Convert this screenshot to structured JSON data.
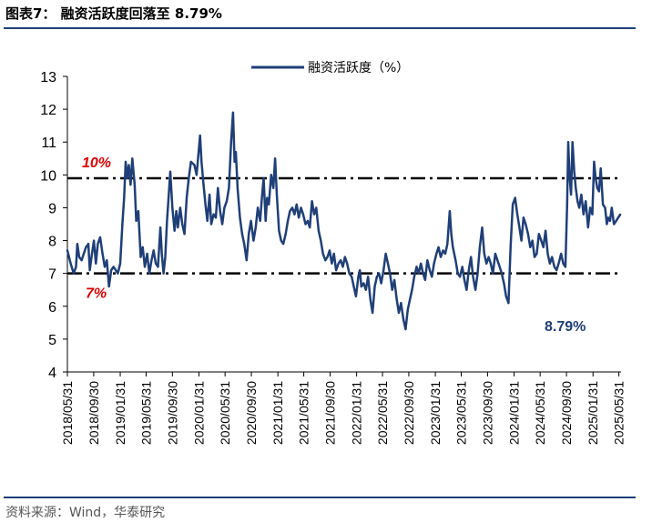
{
  "header": {
    "title": "图表7： 融资活跃度回落至 8.79%",
    "source": "资料来源：Wind，华泰研究"
  },
  "colors": {
    "line": "#1f3f78",
    "accent": "#e00000",
    "rule": "#1f3f78"
  },
  "chart_data": {
    "type": "line",
    "title": "",
    "xlabel": "",
    "ylabel": "",
    "ylim": [
      4,
      13
    ],
    "yticks": [
      4,
      5,
      6,
      7,
      8,
      9,
      10,
      11,
      12,
      13
    ],
    "xlim": [
      "2018-05-31",
      "2025-06-10"
    ],
    "xticks": [
      "2018/05/31",
      "2018/09/30",
      "2019/01/31",
      "2019/05/31",
      "2019/09/30",
      "2020/01/31",
      "2020/05/31",
      "2020/09/30",
      "2021/01/31",
      "2021/05/31",
      "2021/09/30",
      "2022/01/31",
      "2022/05/31",
      "2022/09/30",
      "2023/01/31",
      "2023/05/31",
      "2023/09/30",
      "2024/01/31",
      "2024/05/31",
      "2024/09/30",
      "2025/01/31",
      "2025/05/31"
    ],
    "legend": {
      "position": "top-center"
    },
    "grid": false,
    "reference_lines": [
      {
        "y": 9.9,
        "label": "10%"
      },
      {
        "y": 7.0,
        "label": "7%"
      }
    ],
    "annotation": "8.79%",
    "series": [
      {
        "name": "融资活跃度（%）",
        "points": [
          [
            "2018-05-31",
            7.7
          ],
          [
            "2018-06-15",
            7.3
          ],
          [
            "2018-06-29",
            7.0
          ],
          [
            "2018-07-10",
            7.2
          ],
          [
            "2018-07-16",
            7.9
          ],
          [
            "2018-07-25",
            7.5
          ],
          [
            "2018-08-05",
            7.4
          ],
          [
            "2018-08-15",
            7.6
          ],
          [
            "2018-08-25",
            7.8
          ],
          [
            "2018-09-05",
            7.9
          ],
          [
            "2018-09-12",
            7.1
          ],
          [
            "2018-09-20",
            7.5
          ],
          [
            "2018-10-01",
            8.0
          ],
          [
            "2018-10-10",
            7.3
          ],
          [
            "2018-10-19",
            7.9
          ],
          [
            "2018-10-30",
            8.1
          ],
          [
            "2018-11-10",
            7.6
          ],
          [
            "2018-11-20",
            7.2
          ],
          [
            "2018-11-30",
            7.4
          ],
          [
            "2018-12-10",
            6.6
          ],
          [
            "2018-12-20",
            7.1
          ],
          [
            "2018-12-31",
            7.2
          ],
          [
            "2019-01-10",
            7.1
          ],
          [
            "2019-01-20",
            7.0
          ],
          [
            "2019-01-31",
            7.3
          ],
          [
            "2019-02-10",
            8.5
          ],
          [
            "2019-02-18",
            9.3
          ],
          [
            "2019-02-25",
            10.4
          ],
          [
            "2019-03-05",
            9.9
          ],
          [
            "2019-03-12",
            10.3
          ],
          [
            "2019-03-20",
            9.7
          ],
          [
            "2019-03-28",
            10.5
          ],
          [
            "2019-04-08",
            9.7
          ],
          [
            "2019-04-15",
            8.6
          ],
          [
            "2019-04-25",
            8.9
          ],
          [
            "2019-05-06",
            7.5
          ],
          [
            "2019-05-15",
            7.8
          ],
          [
            "2019-05-25",
            7.2
          ],
          [
            "2019-06-05",
            7.6
          ],
          [
            "2019-06-15",
            7.0
          ],
          [
            "2019-06-25",
            7.4
          ],
          [
            "2019-07-05",
            7.7
          ],
          [
            "2019-07-15",
            7.3
          ],
          [
            "2019-07-25",
            7.2
          ],
          [
            "2019-08-05",
            8.4
          ],
          [
            "2019-08-12",
            7.6
          ],
          [
            "2019-08-20",
            7.0
          ],
          [
            "2019-08-28",
            7.5
          ],
          [
            "2019-09-05",
            8.6
          ],
          [
            "2019-09-12",
            9.3
          ],
          [
            "2019-09-20",
            10.1
          ],
          [
            "2019-09-30",
            9.0
          ],
          [
            "2019-10-10",
            8.3
          ],
          [
            "2019-10-18",
            8.9
          ],
          [
            "2019-10-25",
            8.4
          ],
          [
            "2019-11-05",
            9.0
          ],
          [
            "2019-11-15",
            8.5
          ],
          [
            "2019-11-25",
            8.2
          ],
          [
            "2019-12-05",
            9.3
          ],
          [
            "2019-12-15",
            9.9
          ],
          [
            "2019-12-25",
            10.4
          ],
          [
            "2020-01-10",
            10.3
          ],
          [
            "2020-01-20",
            10.0
          ],
          [
            "2020-02-05",
            11.2
          ],
          [
            "2020-02-12",
            10.4
          ],
          [
            "2020-02-20",
            9.8
          ],
          [
            "2020-03-01",
            9.1
          ],
          [
            "2020-03-10",
            8.6
          ],
          [
            "2020-03-20",
            9.4
          ],
          [
            "2020-03-28",
            8.5
          ],
          [
            "2020-04-08",
            8.8
          ],
          [
            "2020-04-18",
            8.7
          ],
          [
            "2020-04-28",
            9.6
          ],
          [
            "2020-05-08",
            8.9
          ],
          [
            "2020-05-18",
            8.5
          ],
          [
            "2020-05-28",
            9.0
          ],
          [
            "2020-06-08",
            9.2
          ],
          [
            "2020-06-18",
            9.6
          ],
          [
            "2020-06-28",
            11.0
          ],
          [
            "2020-07-07",
            11.9
          ],
          [
            "2020-07-14",
            10.4
          ],
          [
            "2020-07-20",
            10.7
          ],
          [
            "2020-07-28",
            9.6
          ],
          [
            "2020-08-08",
            8.7
          ],
          [
            "2020-08-18",
            8.2
          ],
          [
            "2020-08-28",
            7.9
          ],
          [
            "2020-09-08",
            7.4
          ],
          [
            "2020-09-18",
            8.2
          ],
          [
            "2020-09-28",
            8.6
          ],
          [
            "2020-10-10",
            8.0
          ],
          [
            "2020-10-20",
            8.4
          ],
          [
            "2020-10-30",
            9.0
          ],
          [
            "2020-11-10",
            8.6
          ],
          [
            "2020-11-18",
            9.3
          ],
          [
            "2020-11-26",
            9.9
          ],
          [
            "2020-12-05",
            8.6
          ],
          [
            "2020-12-12",
            9.3
          ],
          [
            "2020-12-20",
            9.1
          ],
          [
            "2020-12-31",
            10.0
          ],
          [
            "2021-01-10",
            9.6
          ],
          [
            "2021-01-18",
            10.5
          ],
          [
            "2021-01-26",
            9.4
          ],
          [
            "2021-02-05",
            8.3
          ],
          [
            "2021-02-15",
            8.0
          ],
          [
            "2021-02-25",
            7.9
          ],
          [
            "2021-03-08",
            8.2
          ],
          [
            "2021-03-18",
            8.6
          ],
          [
            "2021-03-28",
            8.9
          ],
          [
            "2021-04-08",
            9.0
          ],
          [
            "2021-04-18",
            8.8
          ],
          [
            "2021-04-28",
            9.1
          ],
          [
            "2021-05-08",
            8.7
          ],
          [
            "2021-05-18",
            9.0
          ],
          [
            "2021-05-28",
            8.8
          ],
          [
            "2021-06-08",
            8.5
          ],
          [
            "2021-06-18",
            8.6
          ],
          [
            "2021-06-28",
            8.4
          ],
          [
            "2021-07-08",
            9.2
          ],
          [
            "2021-07-18",
            8.8
          ],
          [
            "2021-07-28",
            9.0
          ],
          [
            "2021-08-08",
            8.3
          ],
          [
            "2021-08-18",
            8.0
          ],
          [
            "2021-08-28",
            7.6
          ],
          [
            "2021-09-08",
            7.4
          ],
          [
            "2021-09-18",
            7.5
          ],
          [
            "2021-09-28",
            7.7
          ],
          [
            "2021-10-08",
            7.3
          ],
          [
            "2021-10-18",
            7.6
          ],
          [
            "2021-10-28",
            7.1
          ],
          [
            "2021-11-08",
            7.3
          ],
          [
            "2021-11-18",
            7.4
          ],
          [
            "2021-11-28",
            7.2
          ],
          [
            "2021-12-08",
            7.5
          ],
          [
            "2021-12-18",
            7.3
          ],
          [
            "2021-12-28",
            7.0
          ],
          [
            "2022-01-08",
            6.9
          ],
          [
            "2022-01-18",
            6.6
          ],
          [
            "2022-01-28",
            6.3
          ],
          [
            "2022-02-08",
            6.9
          ],
          [
            "2022-02-15",
            7.1
          ],
          [
            "2022-02-22",
            6.6
          ],
          [
            "2022-03-05",
            6.7
          ],
          [
            "2022-03-15",
            6.5
          ],
          [
            "2022-03-25",
            6.9
          ],
          [
            "2022-04-05",
            6.2
          ],
          [
            "2022-04-15",
            5.8
          ],
          [
            "2022-04-25",
            6.6
          ],
          [
            "2022-05-05",
            6.9
          ],
          [
            "2022-05-15",
            7.0
          ],
          [
            "2022-05-25",
            6.7
          ],
          [
            "2022-06-05",
            7.1
          ],
          [
            "2022-06-15",
            7.6
          ],
          [
            "2022-06-25",
            7.3
          ],
          [
            "2022-07-05",
            7.0
          ],
          [
            "2022-07-15",
            6.5
          ],
          [
            "2022-07-25",
            6.8
          ],
          [
            "2022-08-05",
            6.2
          ],
          [
            "2022-08-15",
            5.8
          ],
          [
            "2022-08-25",
            6.1
          ],
          [
            "2022-09-05",
            5.6
          ],
          [
            "2022-09-15",
            5.3
          ],
          [
            "2022-09-25",
            5.9
          ],
          [
            "2022-10-05",
            6.2
          ],
          [
            "2022-10-15",
            6.5
          ],
          [
            "2022-10-25",
            6.9
          ],
          [
            "2022-11-05",
            7.2
          ],
          [
            "2022-11-15",
            7.0
          ],
          [
            "2022-11-25",
            7.3
          ],
          [
            "2022-12-05",
            7.0
          ],
          [
            "2022-12-15",
            6.8
          ],
          [
            "2022-12-25",
            7.4
          ],
          [
            "2023-01-05",
            7.1
          ],
          [
            "2023-01-15",
            6.9
          ],
          [
            "2023-01-25",
            7.3
          ],
          [
            "2023-02-05",
            7.6
          ],
          [
            "2023-02-15",
            7.8
          ],
          [
            "2023-02-25",
            7.5
          ],
          [
            "2023-03-08",
            7.7
          ],
          [
            "2023-03-18",
            7.6
          ],
          [
            "2023-03-28",
            7.9
          ],
          [
            "2023-04-08",
            8.9
          ],
          [
            "2023-04-15",
            8.2
          ],
          [
            "2023-04-22",
            7.8
          ],
          [
            "2023-05-05",
            7.4
          ],
          [
            "2023-05-15",
            7.0
          ],
          [
            "2023-05-25",
            6.9
          ],
          [
            "2023-06-05",
            7.2
          ],
          [
            "2023-06-15",
            6.8
          ],
          [
            "2023-06-25",
            6.5
          ],
          [
            "2023-07-05",
            7.1
          ],
          [
            "2023-07-15",
            7.5
          ],
          [
            "2023-07-25",
            6.9
          ],
          [
            "2023-08-05",
            6.5
          ],
          [
            "2023-08-15",
            7.0
          ],
          [
            "2023-08-25",
            7.8
          ],
          [
            "2023-09-05",
            8.4
          ],
          [
            "2023-09-15",
            7.6
          ],
          [
            "2023-09-25",
            7.3
          ],
          [
            "2023-10-05",
            7.5
          ],
          [
            "2023-10-15",
            7.3
          ],
          [
            "2023-10-25",
            7.0
          ],
          [
            "2023-11-05",
            7.6
          ],
          [
            "2023-11-15",
            7.4
          ],
          [
            "2023-11-25",
            7.2
          ],
          [
            "2023-12-05",
            7.0
          ],
          [
            "2023-12-15",
            6.7
          ],
          [
            "2023-12-25",
            6.3
          ],
          [
            "2024-01-05",
            6.1
          ],
          [
            "2024-01-15",
            7.8
          ],
          [
            "2024-01-25",
            9.1
          ],
          [
            "2024-02-05",
            9.3
          ],
          [
            "2024-02-15",
            8.8
          ],
          [
            "2024-02-25",
            8.4
          ],
          [
            "2024-03-05",
            8.0
          ],
          [
            "2024-03-15",
            8.7
          ],
          [
            "2024-03-25",
            8.5
          ],
          [
            "2024-04-05",
            8.2
          ],
          [
            "2024-04-15",
            7.8
          ],
          [
            "2024-04-25",
            8.0
          ],
          [
            "2024-05-05",
            7.5
          ],
          [
            "2024-05-15",
            7.6
          ],
          [
            "2024-05-25",
            8.2
          ],
          [
            "2024-06-05",
            8.0
          ],
          [
            "2024-06-15",
            7.8
          ],
          [
            "2024-06-25",
            8.3
          ],
          [
            "2024-07-05",
            7.6
          ],
          [
            "2024-07-15",
            7.3
          ],
          [
            "2024-07-25",
            7.5
          ],
          [
            "2024-08-05",
            7.2
          ],
          [
            "2024-08-15",
            7.1
          ],
          [
            "2024-08-25",
            7.3
          ],
          [
            "2024-09-05",
            7.6
          ],
          [
            "2024-09-15",
            7.3
          ],
          [
            "2024-09-25",
            7.2
          ],
          [
            "2024-10-03",
            9.1
          ],
          [
            "2024-10-08",
            11.0
          ],
          [
            "2024-10-14",
            10.0
          ],
          [
            "2024-10-21",
            9.4
          ],
          [
            "2024-10-28",
            11.0
          ],
          [
            "2024-11-05",
            10.1
          ],
          [
            "2024-11-12",
            9.6
          ],
          [
            "2024-11-20",
            9.2
          ],
          [
            "2024-11-28",
            9.0
          ],
          [
            "2024-12-08",
            9.4
          ],
          [
            "2024-12-18",
            8.8
          ],
          [
            "2024-12-28",
            9.2
          ],
          [
            "2025-01-08",
            8.4
          ],
          [
            "2025-01-18",
            9.0
          ],
          [
            "2025-01-28",
            8.8
          ],
          [
            "2025-02-05",
            10.4
          ],
          [
            "2025-02-12",
            9.9
          ],
          [
            "2025-02-20",
            9.6
          ],
          [
            "2025-02-28",
            9.5
          ],
          [
            "2025-03-08",
            10.2
          ],
          [
            "2025-03-18",
            9.1
          ],
          [
            "2025-03-28",
            9.0
          ],
          [
            "2025-04-05",
            8.5
          ],
          [
            "2025-04-12",
            8.7
          ],
          [
            "2025-04-20",
            8.6
          ],
          [
            "2025-04-28",
            9.0
          ],
          [
            "2025-05-08",
            8.5
          ],
          [
            "2025-05-18",
            8.6
          ],
          [
            "2025-05-28",
            8.7
          ],
          [
            "2025-06-06",
            8.79
          ]
        ]
      }
    ]
  }
}
